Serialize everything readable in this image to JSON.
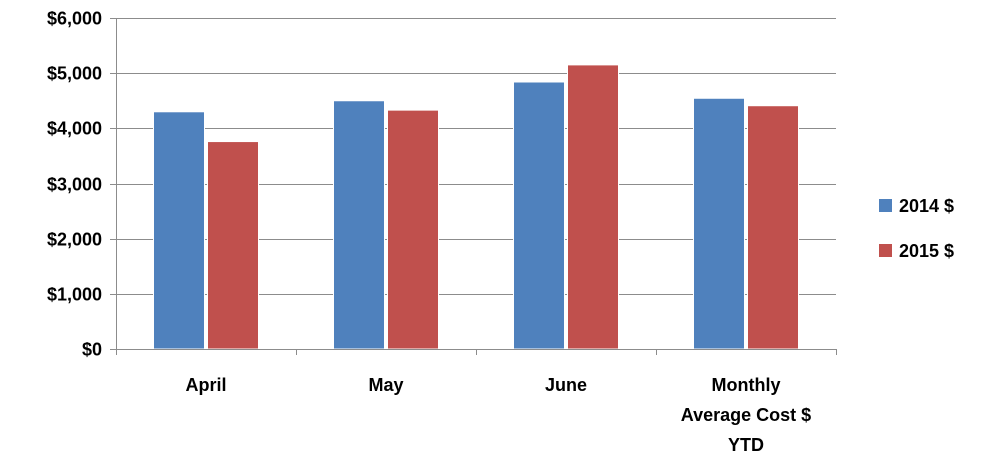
{
  "chart_data": {
    "type": "bar",
    "title": "",
    "xlabel": "",
    "ylabel": "",
    "categories": [
      "April",
      "May",
      "June",
      "Monthly Average Cost $ YTD"
    ],
    "category_lines": [
      [
        "April"
      ],
      [
        "May"
      ],
      [
        "June"
      ],
      [
        "Monthly",
        "Average Cost $",
        "YTD"
      ]
    ],
    "series": [
      {
        "name": "2014 $",
        "color": "#4F81BD",
        "values": [
          4300,
          4500,
          4840,
          4545
        ]
      },
      {
        "name": "2015 $",
        "color": "#C0504D",
        "values": [
          3760,
          4330,
          5150,
          4410
        ]
      }
    ],
    "ylim": [
      0,
      6000
    ],
    "yticks": [
      0,
      1000,
      2000,
      3000,
      4000,
      5000,
      6000
    ],
    "ytick_labels": [
      "$0",
      "$1,000",
      "$2,000",
      "$3,000",
      "$4,000",
      "$5,000",
      "$6,000"
    ],
    "grid": true,
    "legend_position": "right"
  }
}
